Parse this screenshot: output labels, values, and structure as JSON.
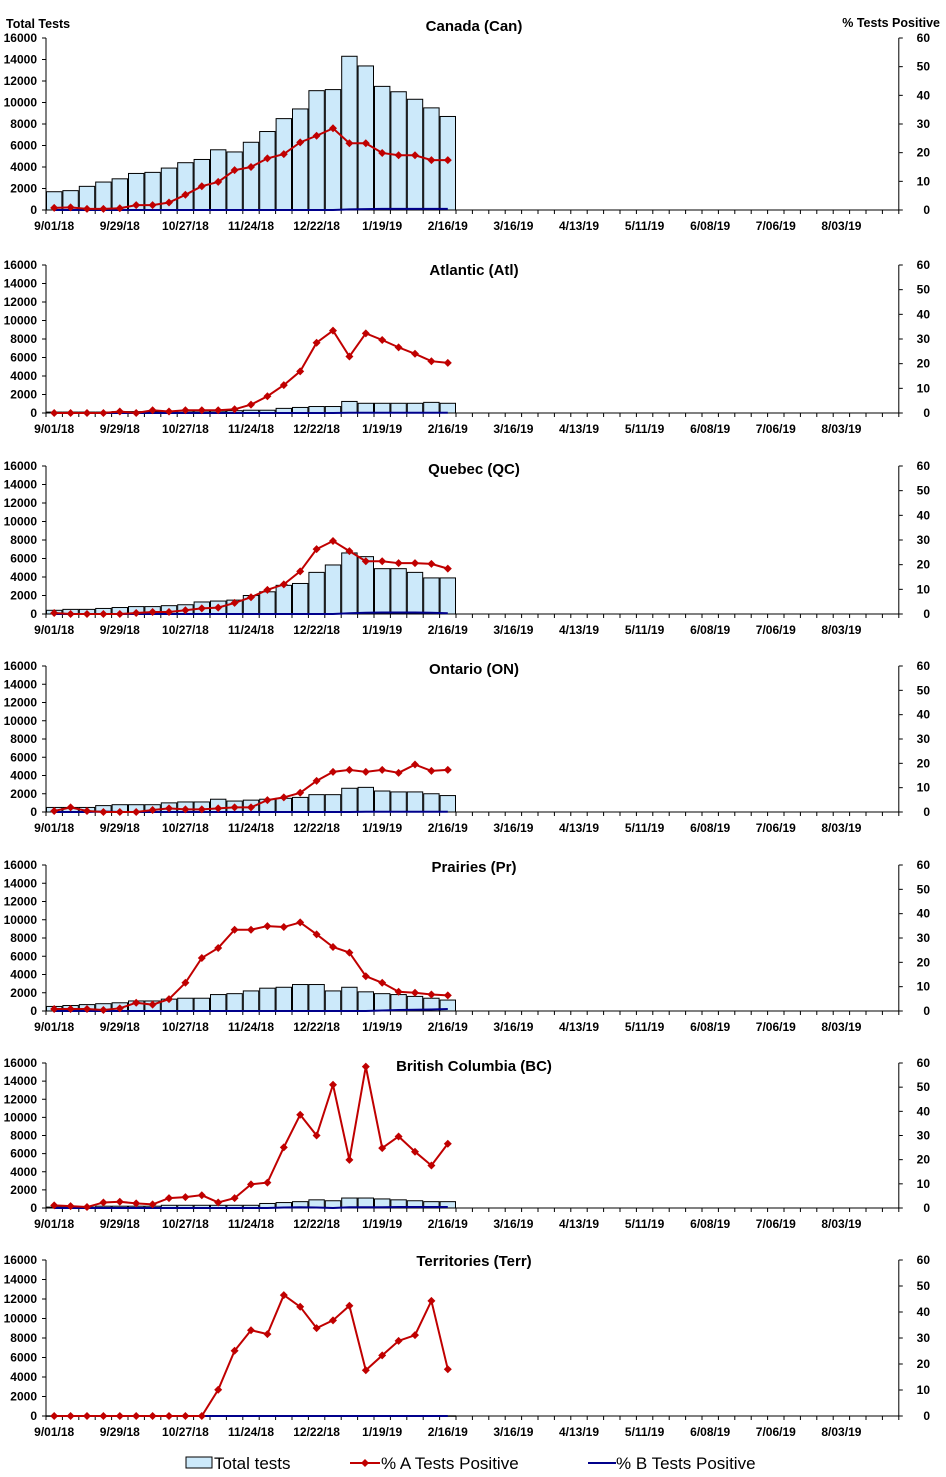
{
  "colors": {
    "bar_fill": "#cce9fa",
    "bar_stroke": "#000000",
    "series_a": "#c00000",
    "series_b": "#00008b"
  },
  "left_axis_label": "Total Tests",
  "right_axis_label": "% Tests Positive",
  "legend": [
    "Total tests",
    "% A Tests Positive",
    "% B Tests Positive"
  ],
  "chart_data": {
    "type": "bar+line",
    "x_tick_labels": [
      "9/01/18",
      "9/29/18",
      "10/27/18",
      "11/24/18",
      "12/22/18",
      "1/19/19",
      "2/16/19",
      "3/16/19",
      "4/13/19",
      "5/11/19",
      "6/08/19",
      "7/06/19",
      "8/03/19"
    ],
    "left_ylim": [
      0,
      16000
    ],
    "left_ticks": [
      0,
      2000,
      4000,
      6000,
      8000,
      10000,
      12000,
      14000,
      16000
    ],
    "right_ylim": [
      0,
      60
    ],
    "right_ticks": [
      0,
      10,
      20,
      30,
      40,
      50,
      60
    ],
    "weeks_total": 52,
    "legend_placement": "bottom",
    "panels": [
      {
        "title": "Canada (Can)",
        "total_tests": [
          1700,
          1800,
          2200,
          2600,
          2900,
          3400,
          3500,
          3900,
          4400,
          4700,
          5600,
          5400,
          6300,
          7300,
          8500,
          9400,
          11100,
          11200,
          14300,
          13400,
          11500,
          11000,
          10300,
          9500,
          8700
        ],
        "pct_a": [
          0.75,
          0.9,
          0.4,
          0.4,
          0.6,
          1.7,
          1.7,
          2.6,
          5.3,
          8.3,
          9.8,
          13.9,
          15,
          18,
          19.5,
          23.6,
          25.9,
          28.5,
          23.3,
          23.3,
          19.9,
          19.1,
          19.1,
          17.4,
          17.4
        ],
        "pct_b": [
          0,
          0,
          0,
          0,
          0,
          0,
          0,
          0,
          0,
          0,
          0,
          0,
          0,
          0,
          0,
          0,
          0,
          0,
          0.2,
          0.3,
          0.4,
          0.4,
          0.4,
          0.4,
          0.4
        ]
      },
      {
        "title": "Atlantic (Atl)",
        "total_tests": [
          100,
          100,
          100,
          100,
          150,
          150,
          150,
          200,
          200,
          200,
          200,
          250,
          300,
          300,
          500,
          600,
          700,
          700,
          1250,
          1050,
          1050,
          1050,
          1050,
          1150,
          1050
        ],
        "pct_a": [
          0,
          0,
          0,
          0,
          0.6,
          0,
          1.1,
          0.6,
          1.1,
          1.1,
          1.1,
          1.5,
          3.4,
          6.8,
          11.3,
          16.9,
          28.5,
          33.4,
          22.9,
          32.3,
          29.6,
          26.6,
          24,
          21,
          20.3
        ],
        "pct_b": [
          0,
          0,
          0,
          0,
          0,
          0,
          0,
          0,
          0,
          0,
          0,
          0,
          0,
          0,
          0,
          0,
          0,
          0,
          0.1,
          0.1,
          0.1,
          0.1,
          0.1,
          0.1,
          0.1
        ]
      },
      {
        "title": "Quebec (QC)",
        "total_tests": [
          400,
          500,
          500,
          600,
          700,
          800,
          800,
          900,
          1000,
          1300,
          1400,
          1500,
          2000,
          2400,
          3100,
          3300,
          4500,
          5300,
          6600,
          6200,
          4900,
          4900,
          4500,
          3900,
          3900
        ],
        "pct_a": [
          0.4,
          0,
          0,
          0,
          0,
          0.4,
          0.8,
          0.8,
          1.5,
          2.3,
          2.6,
          4.5,
          6.8,
          9.8,
          12,
          17.3,
          26.3,
          29.6,
          25.5,
          21.4,
          21.4,
          20.6,
          20.6,
          20.3,
          18.4
        ],
        "pct_b": [
          0,
          0,
          0,
          0,
          0,
          0,
          0,
          0,
          0,
          0,
          0,
          0,
          0,
          0,
          0,
          0,
          0,
          0,
          0.3,
          0.5,
          0.6,
          0.6,
          0.6,
          0.5,
          0.3
        ]
      },
      {
        "title": "Ontario (ON)",
        "total_tests": [
          500,
          500,
          500,
          700,
          800,
          800,
          800,
          1000,
          1100,
          1100,
          1400,
          1200,
          1300,
          1400,
          1500,
          1600,
          1900,
          1900,
          2600,
          2700,
          2300,
          2200,
          2200,
          2000,
          1800
        ],
        "pct_a": [
          0.4,
          1.9,
          0.4,
          0,
          0,
          0,
          0.8,
          1.5,
          1.1,
          1.1,
          1.5,
          1.9,
          1.9,
          4.9,
          6,
          7.9,
          12.8,
          16.5,
          17.3,
          16.5,
          17.3,
          16.1,
          19.5,
          16.9,
          17.3
        ],
        "pct_b": [
          0,
          0,
          0,
          0.2,
          0,
          0,
          0,
          0,
          0,
          0,
          0,
          0,
          0,
          0,
          0,
          0,
          0,
          0,
          0,
          0.1,
          0.1,
          0.1,
          0.1,
          0.1,
          0.1
        ]
      },
      {
        "title": "Prairies (Pr)",
        "total_tests": [
          500,
          600,
          700,
          800,
          900,
          1100,
          1100,
          1300,
          1400,
          1400,
          1800,
          1900,
          2200,
          2500,
          2600,
          2900,
          2900,
          2200,
          2600,
          2100,
          1900,
          1800,
          1600,
          1400,
          1200
        ],
        "pct_a": [
          0.8,
          0.8,
          0.8,
          0.4,
          1.1,
          3.4,
          2.6,
          4.9,
          11.6,
          21.8,
          25.9,
          33.4,
          33.4,
          34.9,
          34.5,
          36.4,
          31.5,
          26.3,
          24,
          14.3,
          11.6,
          7.9,
          7.5,
          6.8,
          6.4
        ],
        "pct_b": [
          0,
          0,
          0,
          0,
          0,
          0,
          0,
          0,
          0,
          0,
          0,
          0,
          0,
          0,
          0,
          0,
          0,
          0,
          0,
          0,
          0.2,
          0.4,
          0.5,
          0.6,
          0.8
        ]
      },
      {
        "title": "British Columbia (BC)",
        "total_tests": [
          100,
          100,
          100,
          200,
          200,
          200,
          200,
          300,
          300,
          300,
          300,
          300,
          300,
          500,
          600,
          700,
          900,
          800,
          1100,
          1100,
          1000,
          900,
          800,
          700,
          700
        ],
        "pct_a": [
          1.1,
          0.8,
          0.4,
          2.3,
          2.6,
          1.9,
          1.5,
          4.1,
          4.5,
          5.3,
          2.3,
          4.1,
          9.8,
          10.5,
          25.1,
          38.6,
          30,
          51,
          19.9,
          58.5,
          24.8,
          29.6,
          23.3,
          17.6,
          26.6
        ],
        "pct_b": [
          0,
          0,
          0,
          0,
          0,
          0,
          0,
          0,
          0,
          0,
          0,
          0,
          0,
          0,
          0.2,
          0.3,
          0.2,
          0,
          0.3,
          0.3,
          0.3,
          0.4,
          0.4,
          0.4,
          0.4
        ]
      },
      {
        "title": "Territories (Terr)",
        "total_tests": [
          20,
          20,
          20,
          20,
          20,
          20,
          20,
          20,
          20,
          20,
          20,
          20,
          20,
          20,
          20,
          20,
          20,
          20,
          20,
          20,
          20,
          20,
          20,
          20,
          20
        ],
        "pct_a": [
          0,
          0,
          0,
          0,
          0,
          0,
          0,
          0,
          0,
          0,
          10.1,
          25.1,
          33,
          31.5,
          46.5,
          42,
          33.8,
          36.8,
          42.4,
          17.6,
          23.3,
          28.9,
          31.1,
          44.3,
          18
        ],
        "pct_b": [
          0,
          0,
          0,
          0,
          0,
          0,
          0,
          0,
          0,
          0,
          0,
          0,
          0,
          0,
          0,
          0,
          0,
          0,
          0,
          0,
          0,
          0,
          0,
          0,
          0
        ]
      }
    ]
  }
}
